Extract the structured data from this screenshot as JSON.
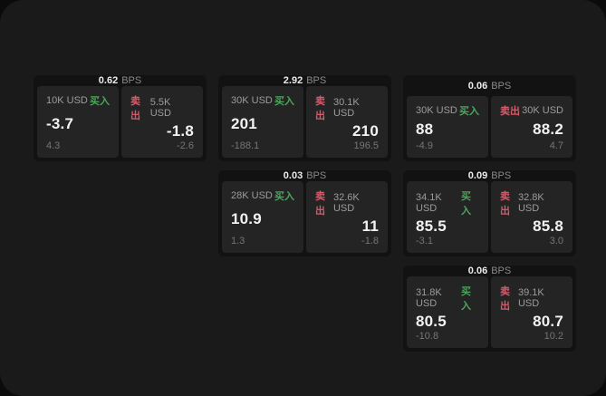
{
  "labels": {
    "unit": "BPS",
    "buy": "买入",
    "sell": "卖出"
  },
  "colors": {
    "buy": "#4ba65b",
    "sell": "#d85a6a",
    "page_bg": "#1a1a1a",
    "card_bg": "#121212",
    "panel_bg": "#242424"
  },
  "cards": [
    {
      "bps": "0.62",
      "buy": {
        "size": "10K USD",
        "main": "-3.7",
        "sub": "4.3"
      },
      "sell": {
        "size": "5.5K USD",
        "main": "-1.8",
        "sub": "-2.6"
      }
    },
    {
      "bps": "2.92",
      "buy": {
        "size": "30K USD",
        "main": "201",
        "sub": "-188.1"
      },
      "sell": {
        "size": "30.1K USD",
        "main": "210",
        "sub": "196.5"
      }
    },
    {
      "bps": "0.06",
      "buy": {
        "size": "30K USD",
        "main": "88",
        "sub": "-4.9"
      },
      "sell": {
        "size": "30K USD",
        "main": "88.2",
        "sub": "4.7"
      }
    },
    {
      "bps": "0.03",
      "buy": {
        "size": "28K USD",
        "main": "10.9",
        "sub": "1.3"
      },
      "sell": {
        "size": "32.6K USD",
        "main": "11",
        "sub": "-1.8"
      }
    },
    {
      "bps": "0.09",
      "buy": {
        "size": "34.1K USD",
        "main": "85.5",
        "sub": "-3.1"
      },
      "sell": {
        "size": "32.8K USD",
        "main": "85.8",
        "sub": "3.0"
      }
    },
    {
      "bps": "0.06",
      "buy": {
        "size": "31.8K USD",
        "main": "80.5",
        "sub": "-10.8"
      },
      "sell": {
        "size": "39.1K USD",
        "main": "80.7",
        "sub": "10.2"
      }
    }
  ]
}
